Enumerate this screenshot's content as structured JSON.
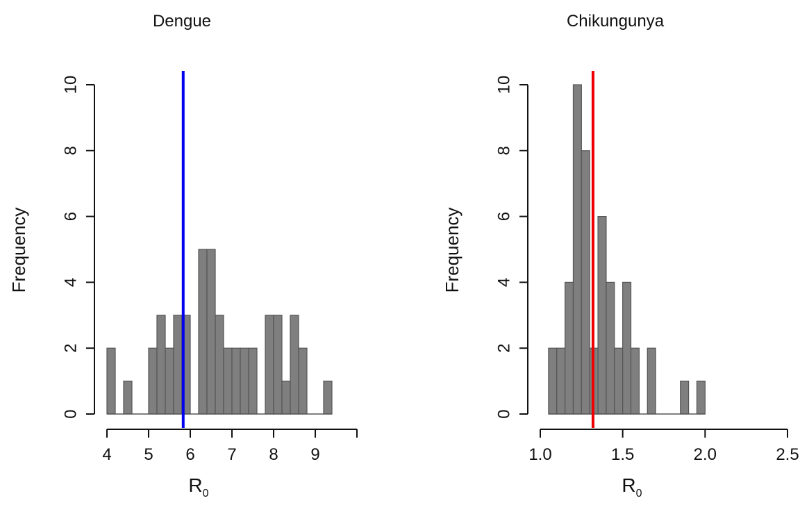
{
  "chart_data": [
    {
      "type": "bar",
      "title": "Dengue",
      "xlabel": "R",
      "xlabel_subscript": "0",
      "ylabel": "Frequency",
      "xlim": [
        4,
        10
      ],
      "ylim": [
        0,
        10
      ],
      "x_ticks": [
        4,
        5,
        6,
        7,
        8,
        9
      ],
      "x_tick_labels": [
        "4",
        "5",
        "6",
        "7",
        "8",
        "9"
      ],
      "y_ticks": [
        0,
        2,
        4,
        6,
        8,
        10
      ],
      "y_tick_labels": [
        "0",
        "2",
        "4",
        "6",
        "8",
        "10"
      ],
      "bin_start": 4.0,
      "bin_width": 0.2,
      "counts": [
        2,
        0,
        1,
        0,
        0,
        2,
        3,
        2,
        3,
        3,
        0,
        5,
        5,
        3,
        2,
        2,
        2,
        2,
        0,
        3,
        3,
        1,
        3,
        2,
        0,
        0,
        1
      ],
      "bar_color": "#7f7f7f",
      "reference_value": 5.83,
      "reference_color": "#0000ee"
    },
    {
      "type": "bar",
      "title": "Chikungunya",
      "xlabel": "R",
      "xlabel_subscript": "0",
      "ylabel": "Frequency",
      "xlim": [
        1.0,
        2.5
      ],
      "ylim": [
        0,
        10
      ],
      "x_ticks": [
        1.0,
        1.5,
        2.0,
        2.5
      ],
      "x_tick_labels": [
        "1.0",
        "1.5",
        "2.0",
        "2.5"
      ],
      "y_ticks": [
        0,
        2,
        4,
        6,
        8,
        10
      ],
      "y_tick_labels": [
        "0",
        "2",
        "4",
        "6",
        "8",
        "10"
      ],
      "bin_start": 1.05,
      "bin_width": 0.05,
      "counts": [
        2,
        2,
        4,
        10,
        8,
        2,
        6,
        4,
        2,
        4,
        2,
        0,
        2,
        0,
        0,
        0,
        1,
        0,
        1
      ],
      "bar_color": "#7f7f7f",
      "reference_value": 1.32,
      "reference_color": "#ee0000"
    }
  ]
}
